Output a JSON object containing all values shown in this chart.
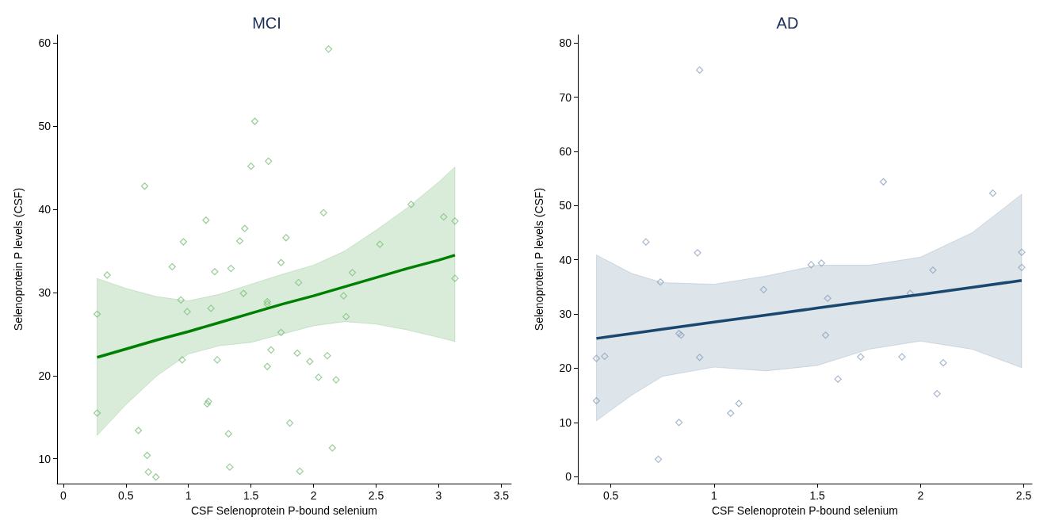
{
  "chart_data": [
    {
      "type": "scatter",
      "title": "MCI",
      "xlabel": "CSF Selenoprotein P-bound selenium",
      "ylabel": "Selenoprotein P levels (CSF)",
      "xlim": [
        -0.05,
        3.58
      ],
      "xticks": [
        0,
        0.5,
        1,
        1.5,
        2,
        2.5,
        3,
        3.5
      ],
      "ylim": [
        7,
        61
      ],
      "yticks": [
        10,
        20,
        30,
        40,
        50,
        60
      ],
      "grid": false,
      "series": [
        {
          "marker": "diamond",
          "color": "#7fbf7f",
          "x": [
            0.27,
            0.27,
            0.35,
            0.6,
            0.65,
            0.67,
            0.68,
            0.74,
            0.87,
            0.94,
            0.95,
            0.96,
            0.99,
            1.14,
            1.15,
            1.16,
            1.18,
            1.21,
            1.23,
            1.32,
            1.33,
            1.34,
            1.41,
            1.44,
            1.45,
            1.5,
            1.53,
            1.63,
            1.63,
            1.63,
            1.64,
            1.66,
            1.74,
            1.74,
            1.78,
            1.81,
            1.87,
            1.88,
            1.89,
            1.97,
            2.04,
            2.08,
            2.11,
            2.12,
            2.15,
            2.18,
            2.24,
            2.26,
            2.31,
            2.53,
            2.78,
            3.04,
            3.13,
            3.13
          ],
          "values": [
            27.4,
            15.5,
            32.1,
            13.4,
            42.8,
            10.4,
            8.4,
            7.8,
            33.1,
            29.1,
            21.9,
            36.1,
            27.7,
            38.7,
            16.6,
            16.9,
            28.1,
            32.5,
            21.9,
            13.0,
            9.0,
            32.9,
            36.2,
            29.9,
            37.7,
            45.2,
            50.6,
            28.6,
            28.9,
            21.1,
            45.8,
            23.1,
            25.2,
            33.6,
            36.6,
            14.3,
            22.7,
            31.2,
            8.5,
            21.7,
            19.8,
            39.6,
            22.4,
            59.3,
            11.3,
            19.5,
            29.6,
            27.1,
            32.4,
            35.8,
            40.6,
            39.1,
            38.6,
            31.7
          ]
        },
        {
          "type": "line",
          "marker": "none",
          "color": "#008000",
          "line_style": "solid",
          "x": [
            0.27,
            0.5,
            0.75,
            1.0,
            1.25,
            1.5,
            1.75,
            2.0,
            2.25,
            2.5,
            2.75,
            3.0,
            3.13
          ],
          "values": [
            22.2,
            23.2,
            24.3,
            25.3,
            26.4,
            27.5,
            28.6,
            29.6,
            30.7,
            31.8,
            32.9,
            33.9,
            34.5
          ],
          "lower": [
            12.8,
            16.5,
            20.0,
            22.6,
            23.6,
            24.0,
            25.0,
            26.0,
            26.5,
            26.2,
            25.5,
            24.6,
            24.1
          ],
          "upper": [
            31.7,
            30.5,
            29.5,
            29.0,
            29.8,
            31.0,
            32.2,
            33.3,
            35.0,
            37.5,
            40.2,
            43.3,
            45.1
          ]
        }
      ]
    },
    {
      "type": "scatter",
      "title": "AD",
      "xlabel": "CSF Selenoprotein P-bound selenium",
      "ylabel": "Selenoprotein P levels (CSF)",
      "xlim": [
        0.34,
        2.54
      ],
      "xticks": [
        0.5,
        1,
        1.5,
        2,
        2.5
      ],
      "ylim": [
        -1.3,
        81.5
      ],
      "yticks": [
        0,
        10,
        20,
        30,
        40,
        50,
        60,
        70,
        80
      ],
      "grid": false,
      "series": [
        {
          "marker": "diamond",
          "color": "#8ea4bf",
          "x": [
            0.43,
            0.43,
            0.47,
            0.67,
            0.74,
            0.73,
            0.83,
            0.84,
            0.83,
            0.93,
            0.92,
            0.93,
            1.08,
            1.12,
            1.24,
            1.47,
            1.52,
            1.55,
            1.54,
            1.6,
            1.71,
            1.82,
            1.91,
            1.95,
            2.06,
            2.08,
            2.11,
            2.35,
            2.49,
            2.49
          ],
          "values": [
            21.8,
            14.0,
            22.2,
            43.3,
            35.9,
            3.2,
            26.4,
            26.1,
            10.0,
            75.0,
            41.3,
            22.0,
            11.7,
            13.5,
            34.5,
            39.1,
            39.4,
            32.9,
            26.1,
            18.0,
            22.1,
            54.4,
            22.1,
            33.8,
            38.1,
            15.3,
            21.0,
            52.3,
            41.4,
            38.6
          ]
        },
        {
          "type": "line",
          "marker": "none",
          "color": "#1a476f",
          "line_style": "solid",
          "x": [
            0.43,
            0.6,
            0.75,
            1.0,
            1.25,
            1.5,
            1.75,
            2.0,
            2.25,
            2.49
          ],
          "values": [
            25.5,
            26.4,
            27.2,
            28.5,
            29.8,
            31.1,
            32.4,
            33.6,
            34.9,
            36.2
          ],
          "lower": [
            10.3,
            15.0,
            18.5,
            20.2,
            19.5,
            20.5,
            23.5,
            25.0,
            23.5,
            20.1
          ],
          "upper": [
            40.9,
            37.5,
            35.8,
            35.5,
            37.0,
            39.0,
            39.0,
            40.5,
            45.0,
            52.1
          ]
        }
      ]
    }
  ]
}
